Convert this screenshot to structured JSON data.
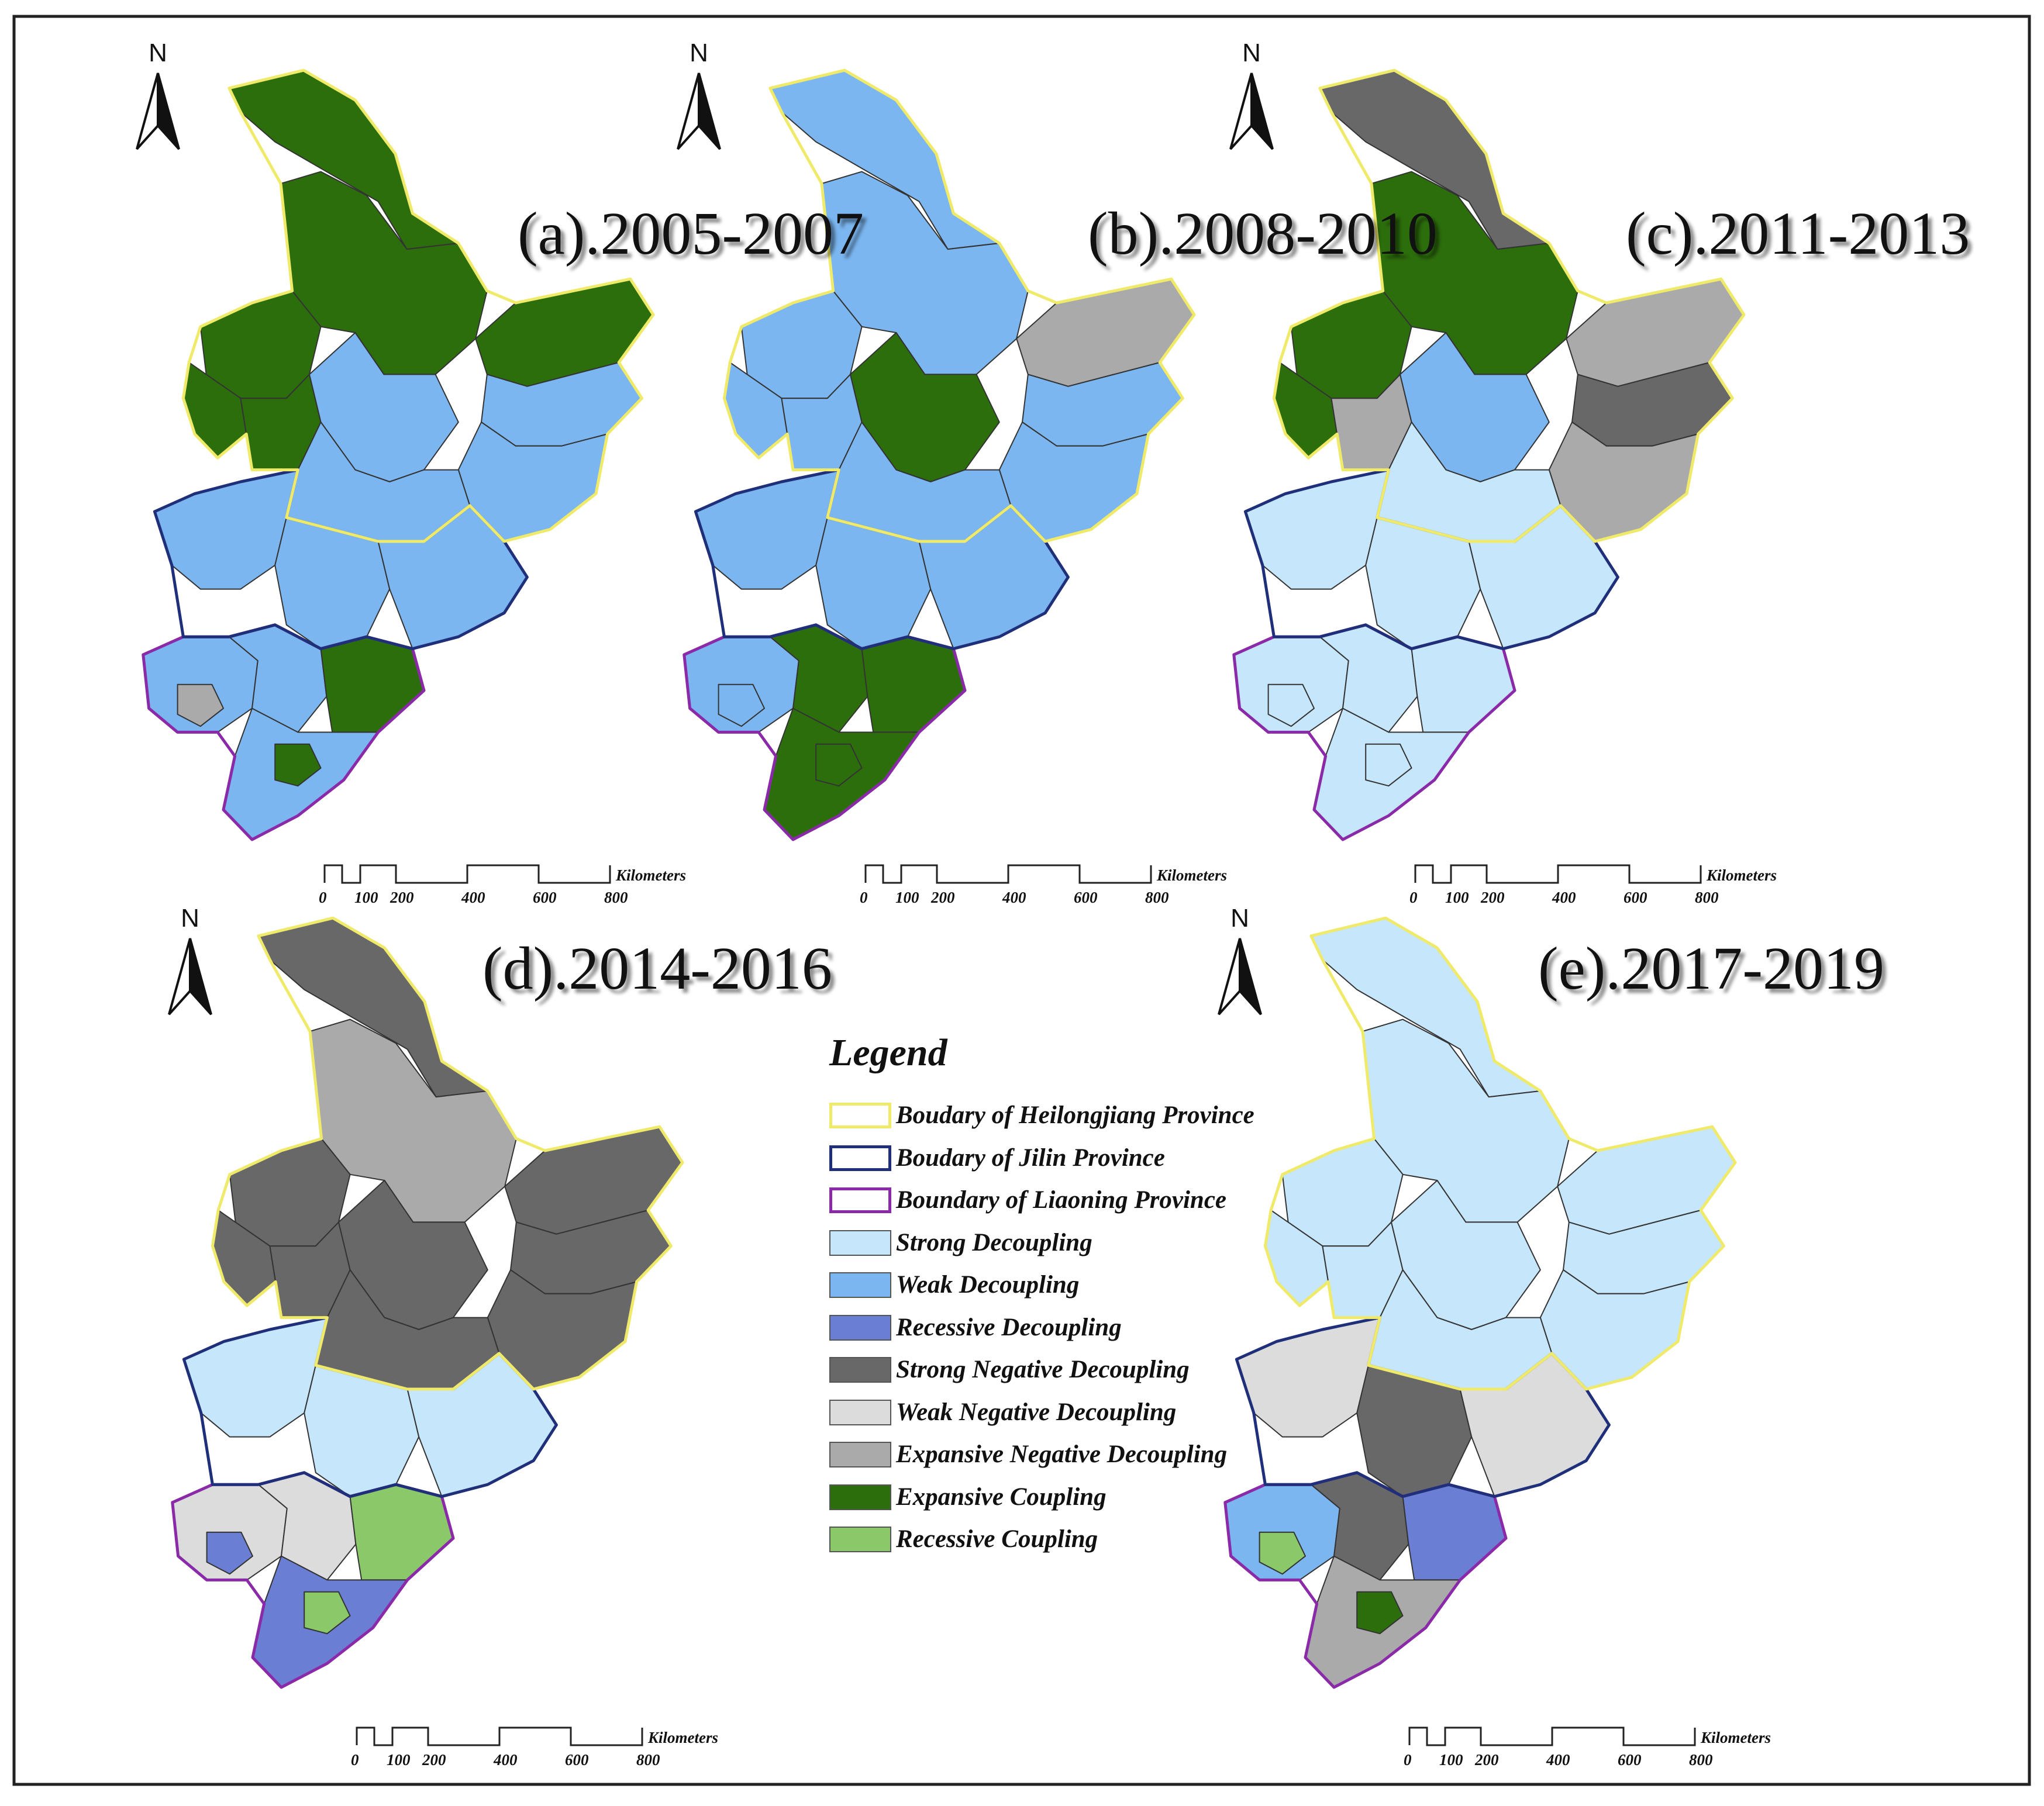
{
  "panels": [
    {
      "id": "a",
      "title": "(a).2005-2007",
      "regions": {
        "hlj_far_north": "#2d6e0c",
        "hlj_north": "#2d6e0c",
        "hlj_west": "#2d6e0c",
        "hlj_nw_edge": "#2d6e0c",
        "hlj_mid_west": "#2d6e0c",
        "hlj_central": "#7bb6f0",
        "hlj_north_east": "#2d6e0c",
        "hlj_east": "#7bb6f0",
        "hlj_south_east": "#7bb6f0",
        "hlj_south": "#7bb6f0",
        "jilin_west": "#7bb6f0",
        "jilin_central": "#7bb6f0",
        "jilin_east": "#7bb6f0",
        "ln_west": "#7bb6f0",
        "ln_central": "#7bb6f0",
        "ln_east": "#2d6e0c",
        "ln_south": "#7bb6f0",
        "ln_extra1": "#2d6e0c",
        "ln_extra2": "#aaaaaa"
      }
    },
    {
      "id": "b",
      "title": "(b).2008-2010",
      "regions": {
        "hlj_far_north": "#7bb6f0",
        "hlj_north": "#7bb6f0",
        "hlj_west": "#7bb6f0",
        "hlj_nw_edge": "#7bb6f0",
        "hlj_mid_west": "#7bb6f0",
        "hlj_central": "#2d6e0c",
        "hlj_north_east": "#aaaaaa",
        "hlj_east": "#7bb6f0",
        "hlj_south_east": "#7bb6f0",
        "hlj_south": "#7bb6f0",
        "jilin_west": "#7bb6f0",
        "jilin_central": "#7bb6f0",
        "jilin_east": "#7bb6f0",
        "ln_west": "#7bb6f0",
        "ln_central": "#2d6e0c",
        "ln_east": "#2d6e0c",
        "ln_south": "#2d6e0c",
        "ln_extra1": "#2d6e0c",
        "ln_extra2": "#7bb6f0"
      }
    },
    {
      "id": "c",
      "title": "(c).2011-2013",
      "regions": {
        "hlj_far_north": "#686868",
        "hlj_north": "#2d6e0c",
        "hlj_west": "#2d6e0c",
        "hlj_nw_edge": "#2d6e0c",
        "hlj_mid_west": "#aaaaaa",
        "hlj_central": "#7bb6f0",
        "hlj_north_east": "#aaaaaa",
        "hlj_east": "#686868",
        "hlj_south_east": "#aaaaaa",
        "hlj_south": "#c6e6fb",
        "jilin_west": "#c6e6fb",
        "jilin_central": "#c6e6fb",
        "jilin_east": "#c6e6fb",
        "ln_west": "#c6e6fb",
        "ln_central": "#c6e6fb",
        "ln_east": "#c6e6fb",
        "ln_south": "#c6e6fb",
        "ln_extra1": "#c6e6fb",
        "ln_extra2": "#c6e6fb"
      }
    },
    {
      "id": "d",
      "title": "(d).2014-2016",
      "regions": {
        "hlj_far_north": "#686868",
        "hlj_north": "#aaaaaa",
        "hlj_west": "#686868",
        "hlj_nw_edge": "#686868",
        "hlj_mid_west": "#686868",
        "hlj_central": "#686868",
        "hlj_north_east": "#686868",
        "hlj_east": "#686868",
        "hlj_south_east": "#686868",
        "hlj_south": "#686868",
        "jilin_west": "#c6e6fb",
        "jilin_central": "#c6e6fb",
        "jilin_east": "#c6e6fb",
        "ln_west": "#dcdcdc",
        "ln_central": "#dcdcdc",
        "ln_east": "#8ac86a",
        "ln_south": "#6a7fd4",
        "ln_extra1": "#8ac86a",
        "ln_extra2": "#6a7fd4"
      }
    },
    {
      "id": "e",
      "title": "(e).2017-2019",
      "regions": {
        "hlj_far_north": "#c6e6fb",
        "hlj_north": "#c6e6fb",
        "hlj_west": "#c6e6fb",
        "hlj_nw_edge": "#c6e6fb",
        "hlj_mid_west": "#c6e6fb",
        "hlj_central": "#c6e6fb",
        "hlj_north_east": "#c6e6fb",
        "hlj_east": "#c6e6fb",
        "hlj_south_east": "#c6e6fb",
        "hlj_south": "#c6e6fb",
        "jilin_west": "#dcdcdc",
        "jilin_central": "#686868",
        "jilin_east": "#dcdcdc",
        "ln_west": "#7bb6f0",
        "ln_central": "#686868",
        "ln_east": "#6a7fd4",
        "ln_south": "#aaaaaa",
        "ln_extra1": "#2d6e0c",
        "ln_extra2": "#8ac86a"
      }
    }
  ],
  "north_label": "N",
  "scale_bar": {
    "ticks": [
      "0",
      "100",
      "200",
      "400",
      "600",
      "800"
    ],
    "unit": "Kilometers"
  },
  "legend": {
    "title": "Legend",
    "items": [
      {
        "label": "Boudary of Heilongjiang Province",
        "type": "outline",
        "color": "#f0ea6a"
      },
      {
        "label": "Boudary of Jilin Province",
        "type": "outline",
        "color": "#1f2f7a"
      },
      {
        "label": "Boundary of Liaoning Province",
        "type": "outline",
        "color": "#8a2aa8"
      },
      {
        "label": "Strong Decoupling",
        "type": "fill",
        "color": "#c6e6fb"
      },
      {
        "label": "Weak Decoupling",
        "type": "fill",
        "color": "#7bb6f0"
      },
      {
        "label": "Recessive Decoupling",
        "type": "fill",
        "color": "#6a7fd4"
      },
      {
        "label": "Strong Negative Decoupling",
        "type": "fill",
        "color": "#686868"
      },
      {
        "label": "Weak Negative Decoupling",
        "type": "fill",
        "color": "#dcdcdc"
      },
      {
        "label": "Expansive Negative Decoupling",
        "type": "fill",
        "color": "#aaaaaa"
      },
      {
        "label": "Expansive Coupling",
        "type": "fill",
        "color": "#2d6e0c"
      },
      {
        "label": "Recessive Coupling",
        "type": "fill",
        "color": "#8ac86a"
      }
    ]
  },
  "colors": {
    "heilongjiang_border": "#f0ea6a",
    "jilin_border": "#1f2f7a",
    "liaoning_border": "#8a2aa8",
    "frame": "#222222"
  }
}
